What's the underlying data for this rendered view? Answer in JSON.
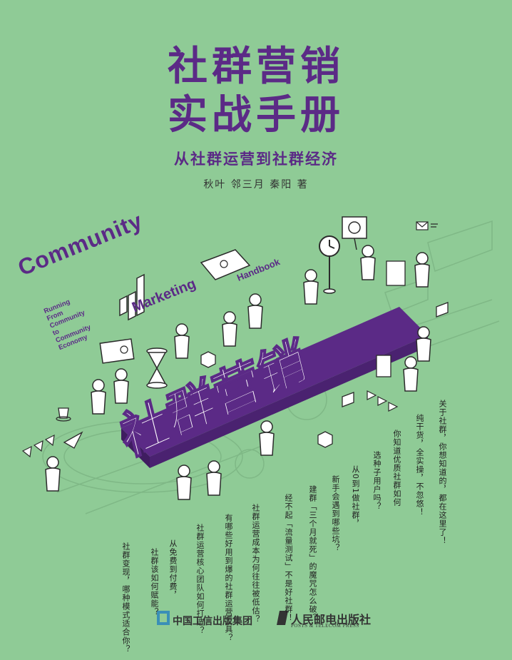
{
  "title_line1": "社群营销",
  "title_line2": "实战手册",
  "subtitle": "从社群运营到社群经济",
  "authors": "秋叶 邻三月 秦阳 著",
  "english": {
    "community": "Community",
    "marketing": "Marketing",
    "handbook": "Handbook",
    "tagline": [
      "Running",
      "From",
      "Community",
      "to",
      "Community",
      "Economy"
    ]
  },
  "big_3d_text": "社群营销",
  "questions": [
    "社群变现，哪种模式适合你？",
    "社群该如何赋能？",
    "从免费到付费，",
    "社群运营核心团队如何打造？",
    "有哪些好用到爆的社群运营工具？",
    "社群运营成本为何往往被低估？",
    "经不起「流量测试」不是好社群！",
    "建群「三个月就死」的魔咒怎么破？",
    "新手会遇到哪些坑？",
    "从0到1做社群，",
    "选种子用户吗？",
    "你知道优质社群如何",
    "纯干货，全实操，不忽悠！",
    "关于社群，你想知道的，都在这里了！"
  ],
  "publisher1": "中国工信出版集团",
  "publisher2": "人民邮电出版社",
  "publisher2_en": "POSTS & TELECOM PRESS",
  "colors": {
    "background": "#8fcb96",
    "purple": "#5b2a86",
    "white": "#ffffff",
    "line": "#2b2b2b"
  }
}
